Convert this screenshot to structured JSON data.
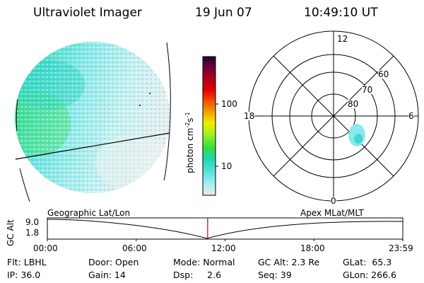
{
  "header": {
    "title": "Ultraviolet Imager",
    "date": "19 Jun 07",
    "time": "10:49:10 UT"
  },
  "colorbar": {
    "unit_label": "photon cm",
    "unit_exp1": "-2",
    "unit_mid": "s",
    "unit_exp2": "-1",
    "tick_labels": [
      "100",
      "10"
    ]
  },
  "polar_plot": {
    "mlt_labels": {
      "top": "12",
      "left": "18",
      "right": "6",
      "bottom": "0"
    },
    "lat_labels": [
      "60",
      "70",
      "80"
    ]
  },
  "timeline": {
    "label_left": "Geographic Lat/Lon",
    "label_right": "Apex MLat/MLT",
    "axis_title": "GC Alt",
    "y_ticks": [
      "9.0",
      "1.8"
    ],
    "x_ticks": [
      "00:00",
      "06:00",
      "12:00",
      "18:00",
      "23:59"
    ],
    "current_time_fraction": 0.451
  },
  "info": {
    "filter": "Flt: LBHL",
    "door": "Door: Open",
    "mode": "Mode: Normal",
    "gc_alt": "GC Alt: 2.3 Re",
    "glat": "GLat:  65.3",
    "ip": "IP: 36.0",
    "gain": "Gain: 14",
    "dsp": "Dsp:     2.6",
    "seq": "Seq: 39",
    "glon": "GLon: 266.6"
  },
  "colors": {
    "colorbar_stops": [
      "#e8e8e8",
      "#b0f0f0",
      "#40e0e0",
      "#20d8b0",
      "#30e040",
      "#a0f020",
      "#f0f000",
      "#f0a000",
      "#f05000",
      "#e00000",
      "#a00020",
      "#600040",
      "#200030"
    ],
    "current_time_line": "#cc0000"
  }
}
